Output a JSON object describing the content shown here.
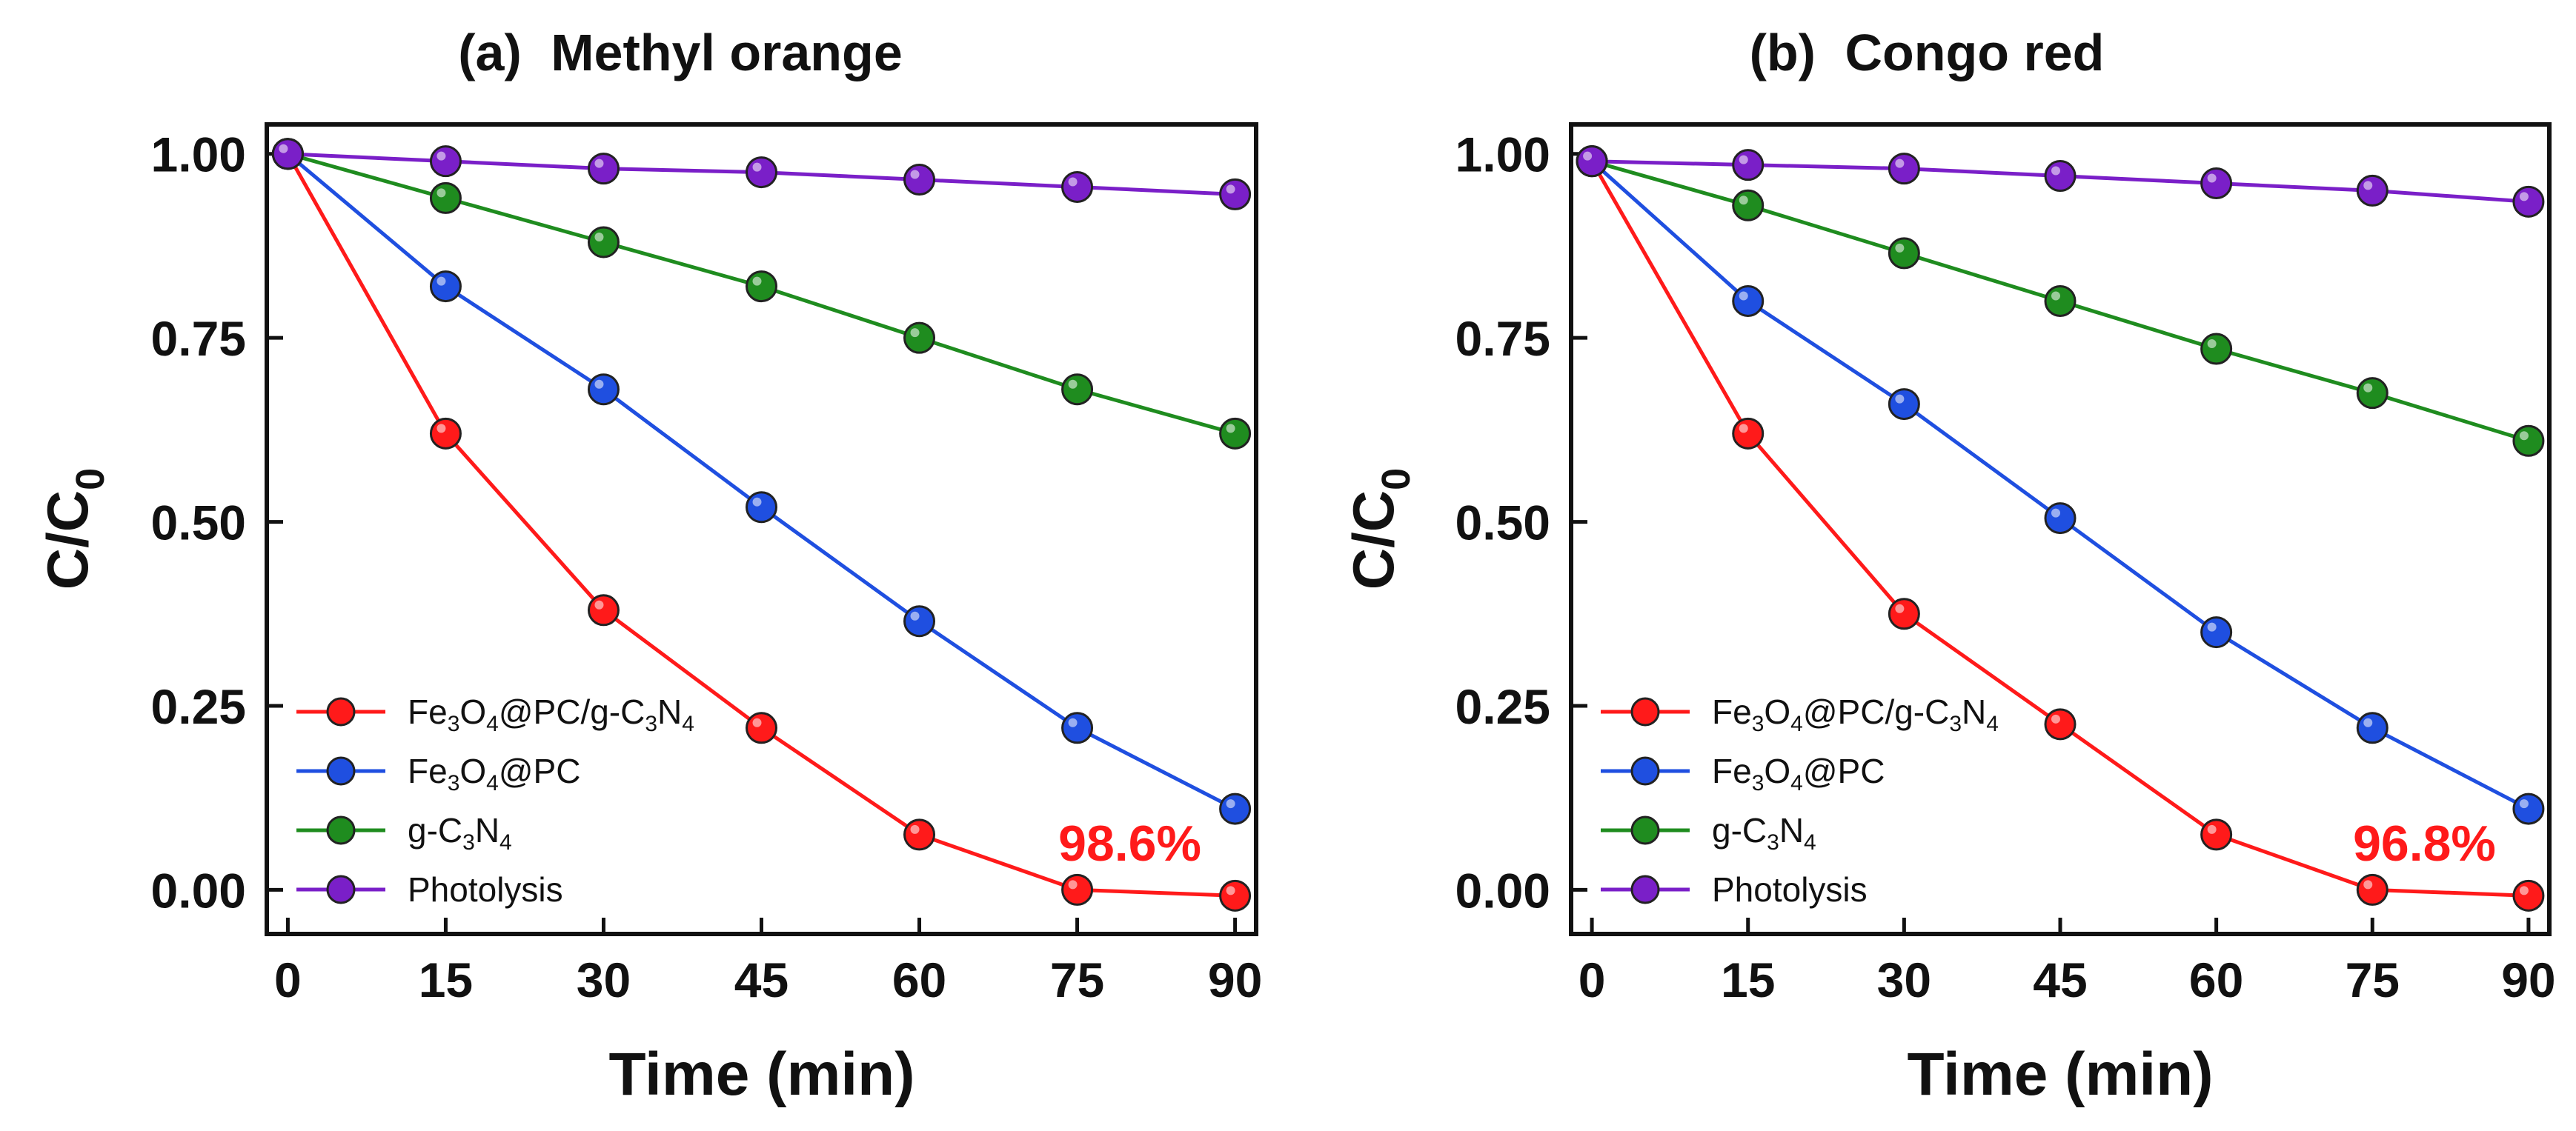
{
  "figure": {
    "chart_data": [
      {
        "type": "line",
        "panel_label": "(a)",
        "title": "Methyl orange",
        "xlabel": "Time (min)",
        "ylabel_main": "C/C",
        "ylabel_sub": "0",
        "xlim": [
          -2,
          92
        ],
        "ylim": [
          -0.06,
          1.04
        ],
        "x_ticks": [
          0,
          15,
          30,
          45,
          60,
          75,
          90
        ],
        "y_ticks": [
          0.0,
          0.25,
          0.5,
          0.75,
          1.0
        ],
        "y_tick_labels": [
          "0.00",
          "0.25",
          "0.50",
          "0.75",
          "1.00"
        ],
        "x": [
          0,
          15,
          30,
          45,
          60,
          75,
          90
        ],
        "series": [
          {
            "name": "Fe3O4@PC/g-C3N4",
            "color": "#ff1a1a",
            "values": [
              1.0,
              0.62,
              0.38,
              0.22,
              0.075,
              0.0,
              -0.008
            ]
          },
          {
            "name": "Fe3O4@PC",
            "color": "#1f4fe0",
            "values": [
              1.0,
              0.82,
              0.68,
              0.52,
              0.365,
              0.22,
              0.11
            ]
          },
          {
            "name": "g-C3N4",
            "color": "#1f8c1f",
            "values": [
              1.0,
              0.94,
              0.88,
              0.82,
              0.75,
              0.68,
              0.62
            ]
          },
          {
            "name": "Photolysis",
            "color": "#7a1fc8",
            "values": [
              1.0,
              0.99,
              0.98,
              0.975,
              0.965,
              0.955,
              0.945
            ]
          }
        ],
        "annotation": {
          "text": "98.6%",
          "color": "#ff1a1a",
          "x": 80,
          "y": 0.06
        },
        "legend_position": "bottom-left"
      },
      {
        "type": "line",
        "panel_label": "(b)",
        "title": "Congo red",
        "xlabel": "Time (min)",
        "ylabel_main": "C/C",
        "ylabel_sub": "0",
        "xlim": [
          -2,
          92
        ],
        "ylim": [
          -0.06,
          1.04
        ],
        "x_ticks": [
          0,
          15,
          30,
          45,
          60,
          75,
          90
        ],
        "y_ticks": [
          0.0,
          0.25,
          0.5,
          0.75,
          1.0
        ],
        "y_tick_labels": [
          "0.00",
          "0.25",
          "0.50",
          "0.75",
          "1.00"
        ],
        "x": [
          0,
          15,
          30,
          45,
          60,
          75,
          90
        ],
        "series": [
          {
            "name": "Fe3O4@PC/g-C3N4",
            "color": "#ff1a1a",
            "values": [
              0.99,
              0.62,
              0.375,
              0.225,
              0.075,
              0.0,
              -0.008
            ]
          },
          {
            "name": "Fe3O4@PC",
            "color": "#1f4fe0",
            "values": [
              0.99,
              0.8,
              0.66,
              0.505,
              0.35,
              0.22,
              0.11
            ]
          },
          {
            "name": "g-C3N4",
            "color": "#1f8c1f",
            "values": [
              0.99,
              0.93,
              0.865,
              0.8,
              0.735,
              0.675,
              0.61
            ]
          },
          {
            "name": "Photolysis",
            "color": "#7a1fc8",
            "values": [
              0.99,
              0.985,
              0.98,
              0.97,
              0.96,
              0.95,
              0.935
            ]
          }
        ],
        "annotation": {
          "text": "96.8%",
          "color": "#ff1a1a",
          "x": 80,
          "y": 0.06
        },
        "legend_position": "bottom-left"
      }
    ]
  },
  "legend_labels": [
    {
      "parts": [
        [
          "Fe",
          "n"
        ],
        [
          "3",
          "sub"
        ],
        [
          "O",
          "n"
        ],
        [
          "4",
          "sub"
        ],
        [
          "@PC/g-C",
          "n"
        ],
        [
          "3",
          "sub"
        ],
        [
          "N",
          "n"
        ],
        [
          "4",
          "sub"
        ]
      ]
    },
    {
      "parts": [
        [
          "Fe",
          "n"
        ],
        [
          "3",
          "sub"
        ],
        [
          "O",
          "n"
        ],
        [
          "4",
          "sub"
        ],
        [
          "@PC",
          "n"
        ]
      ]
    },
    {
      "parts": [
        [
          "g-C",
          "n"
        ],
        [
          "3",
          "sub"
        ],
        [
          "N",
          "n"
        ],
        [
          "4",
          "sub"
        ]
      ]
    },
    {
      "parts": [
        [
          "Photolysis",
          "n"
        ]
      ]
    }
  ]
}
